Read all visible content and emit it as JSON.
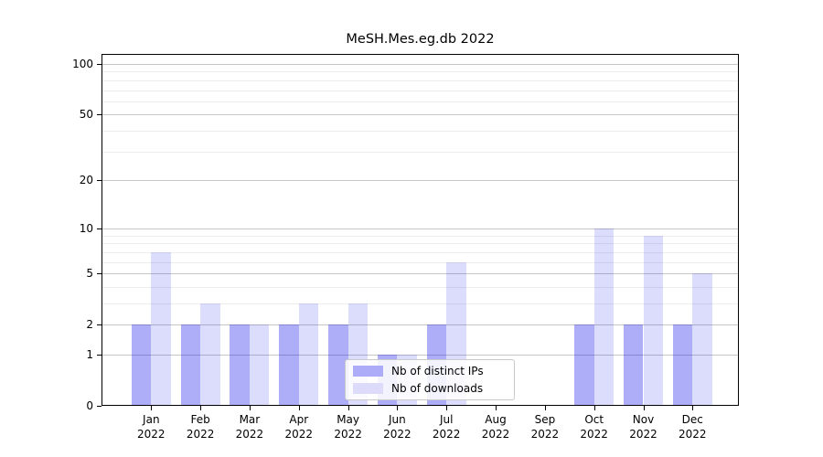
{
  "chart_data": {
    "type": "bar",
    "title": "MeSH.Mes.eg.db 2022",
    "categories": [
      "Jan",
      "Feb",
      "Mar",
      "Apr",
      "May",
      "Jun",
      "Jul",
      "Aug",
      "Sep",
      "Oct",
      "Nov",
      "Dec"
    ],
    "category_year": "2022",
    "series": [
      {
        "name": "Nb of distinct IPs",
        "values": [
          2,
          2,
          2,
          2,
          2,
          1,
          2,
          0,
          0,
          2,
          2,
          2
        ]
      },
      {
        "name": "Nb of downloads",
        "values": [
          7,
          3,
          2,
          3,
          3,
          1,
          6,
          0,
          0,
          10,
          9,
          5
        ]
      }
    ],
    "yscale": "log1p",
    "ylim": [
      0,
      115
    ],
    "yticks": [
      0,
      1,
      2,
      5,
      10,
      20,
      50,
      100
    ],
    "minor_yticks": [
      3,
      4,
      6,
      7,
      8,
      9,
      30,
      40,
      60,
      70,
      80,
      90
    ],
    "grid": "horizontal major+minor",
    "legend_position": "inside lower-center",
    "xlabel": "",
    "ylabel": ""
  },
  "colors": {
    "bar_ips": "rgba(5,5,235,0.33)",
    "bar_downloads": "rgba(5,5,235,0.14)",
    "legend_swatch_ips": "#acacf8",
    "legend_swatch_downloads": "#dcdcfa",
    "grid_major": "#c6c6c6",
    "grid_minor": "#ededed",
    "axis": "#000000",
    "background": "#ffffff"
  }
}
